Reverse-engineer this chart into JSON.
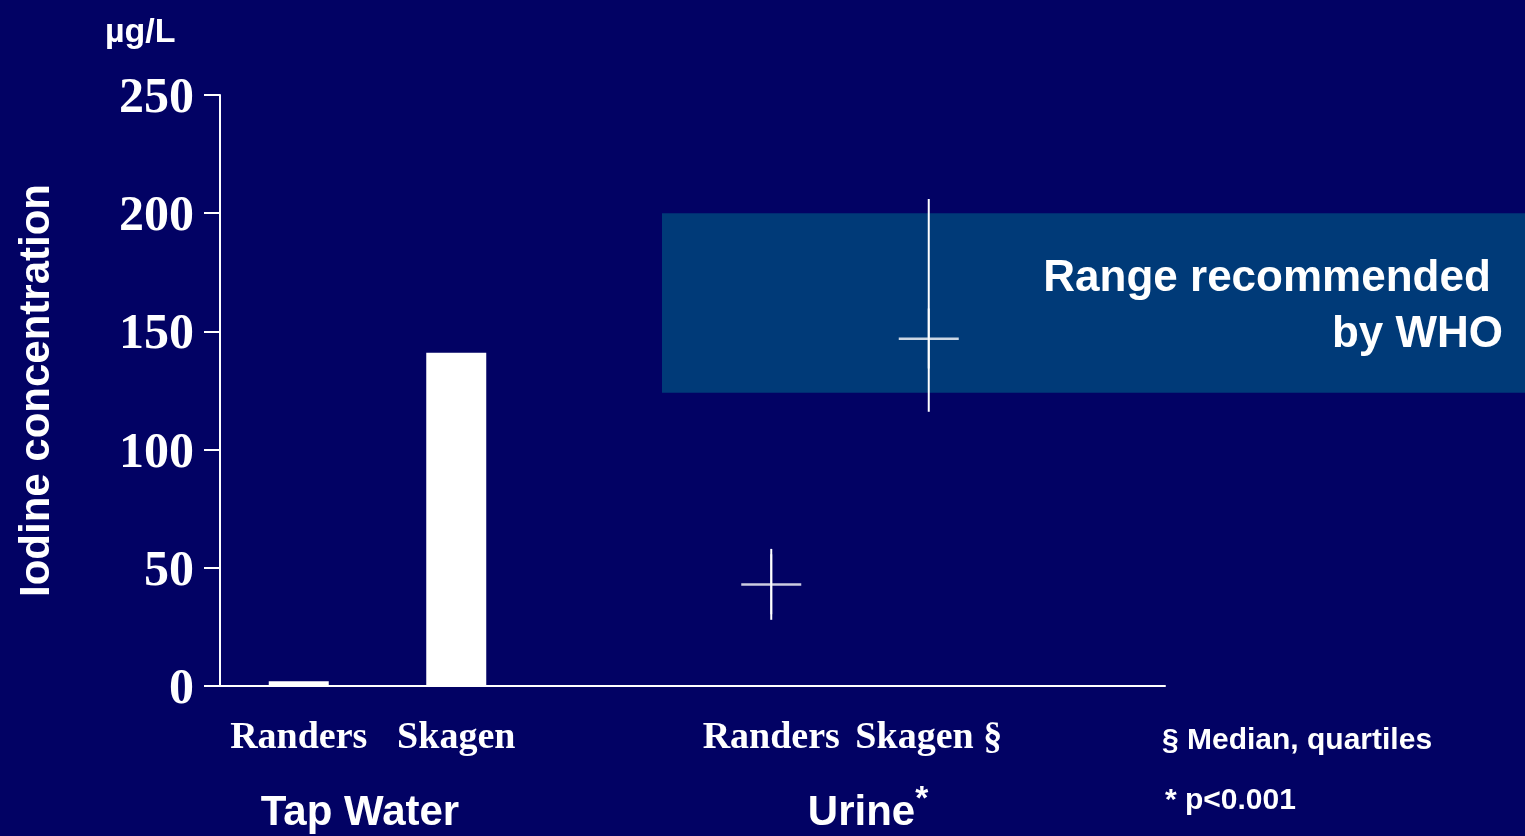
{
  "chart_data": {
    "type": "bar",
    "ylabel": "Iodine concentration",
    "categories": [
      "Randers",
      "Skagen",
      null,
      "Randers",
      "Skagen §",
      null
    ],
    "series": [
      {
        "type": "bar",
        "color": "#ffffff",
        "values": [
          2,
          141,
          null,
          null,
          null,
          null
        ]
      },
      {
        "type": "scatter",
        "color": "#ffffff",
        "values": [
          null,
          null,
          null,
          43,
          147,
          null
        ],
        "errors": [
          null,
          null,
          null,
          [
            28,
            58
          ],
          [
            116,
            206
          ],
          null
        ]
      }
    ],
    "ylim": [
      0,
      250
    ],
    "yticks": [
      0,
      50,
      100,
      150,
      200,
      250
    ],
    "grid": false,
    "marker": "cross",
    "bands": [
      {
        "axis": "y",
        "from": 124,
        "to": 200,
        "label": "Range recommended by WHO",
        "color": "#003a78"
      }
    ],
    "annotations": [
      "µg/L",
      "Tap Water",
      "Urine$^{*}$",
      "§ Median, quartiles",
      "* p<0.001"
    ]
  }
}
